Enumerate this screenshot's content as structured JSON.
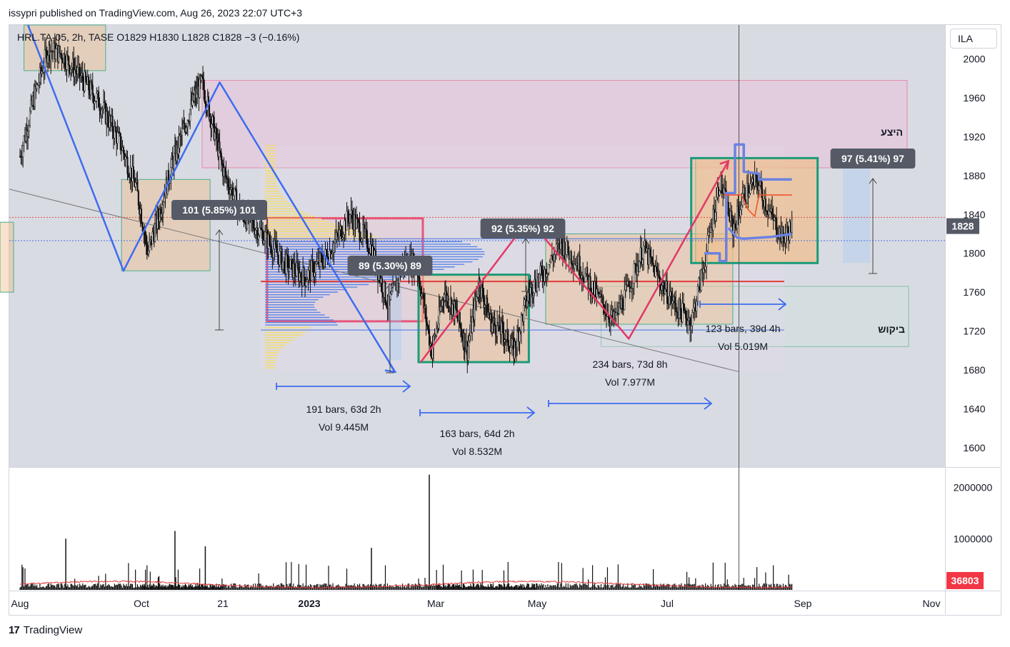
{
  "header": {
    "published": "issypri published on TradingView.com, Aug 26, 2023 22:07 UTC+3",
    "symbol_line": "HRL.TA-05, 2h, TASE  O1829  H1830  L1828  C1828  −3 (−0.16%)",
    "currency": "ILA"
  },
  "footer": {
    "brand": "TradingView"
  },
  "colors": {
    "background": "#ffffff",
    "plot_bg": "#d9dbe3",
    "blue_line": "#3d6cf0",
    "pink_line": "#e23867",
    "green_box": "#1b9b78",
    "volume_ma": "#e23b3b",
    "last_price_label": "#555a66",
    "last_volume_label": "#f23645"
  },
  "chart_data": [
    {
      "type": "line",
      "subtype": "candlestick-price",
      "y_scale": "linear",
      "ylim": [
        1580,
        2035
      ],
      "yticks": [
        1600,
        1640,
        1680,
        1720,
        1760,
        1800,
        1840,
        1880,
        1920,
        1960,
        2000
      ],
      "x_ticks": [
        "Aug",
        "Oct",
        "21",
        "2023",
        "Mar",
        "May",
        "Jul",
        "Sep",
        "Nov"
      ],
      "last_price": 1828,
      "price_path": [
        [
          "2022-08-01",
          1900
        ],
        [
          "2022-08-08",
          1960
        ],
        [
          "2022-08-15",
          2010
        ],
        [
          "2022-08-22",
          2005
        ],
        [
          "2022-09-01",
          1980
        ],
        [
          "2022-09-10",
          1955
        ],
        [
          "2022-09-20",
          1915
        ],
        [
          "2022-09-28",
          1870
        ],
        [
          "2022-10-05",
          1800
        ],
        [
          "2022-10-12",
          1840
        ],
        [
          "2022-10-20",
          1890
        ],
        [
          "2022-10-28",
          1930
        ],
        [
          "2022-11-03",
          1960
        ],
        [
          "2022-11-08",
          1975
        ],
        [
          "2022-11-15",
          1930
        ],
        [
          "2022-11-22",
          1880
        ],
        [
          "2022-11-30",
          1840
        ],
        [
          "2022-12-10",
          1820
        ],
        [
          "2022-12-20",
          1790
        ],
        [
          "2022-12-30",
          1775
        ],
        [
          "2023-01-10",
          1800
        ],
        [
          "2023-01-20",
          1840
        ],
        [
          "2023-01-30",
          1805
        ],
        [
          "2023-02-07",
          1745
        ],
        [
          "2023-02-14",
          1790
        ],
        [
          "2023-02-20",
          1790
        ],
        [
          "2023-02-27",
          1700
        ],
        [
          "2023-03-06",
          1760
        ],
        [
          "2023-03-13",
          1740
        ],
        [
          "2023-03-20",
          1700
        ],
        [
          "2023-03-27",
          1770
        ],
        [
          "2023-04-03",
          1730
        ],
        [
          "2023-04-10",
          1720
        ],
        [
          "2023-04-17",
          1700
        ],
        [
          "2023-04-26",
          1760
        ],
        [
          "2023-05-04",
          1780
        ],
        [
          "2023-05-12",
          1810
        ],
        [
          "2023-05-20",
          1790
        ],
        [
          "2023-05-28",
          1760
        ],
        [
          "2023-06-06",
          1730
        ],
        [
          "2023-06-12",
          1760
        ],
        [
          "2023-06-20",
          1805
        ],
        [
          "2023-06-28",
          1770
        ],
        [
          "2023-07-05",
          1745
        ],
        [
          "2023-07-12",
          1730
        ],
        [
          "2023-07-18",
          1790
        ],
        [
          "2023-07-25",
          1875
        ],
        [
          "2023-07-31",
          1825
        ],
        [
          "2023-08-05",
          1860
        ],
        [
          "2023-08-11",
          1875
        ],
        [
          "2023-08-17",
          1840
        ],
        [
          "2023-08-23",
          1815
        ],
        [
          "2023-08-27",
          1828
        ]
      ],
      "annotations": [
        {
          "label": "101 (5.85%) 101",
          "start_date": "2022-11-19",
          "end_date": "2022-12-26",
          "price": 1800,
          "move": 101
        },
        {
          "label": "89 (5.30%) 89",
          "start_date": "2023-01-20",
          "end_date": "2023-03-27",
          "price": 1790,
          "move": 89
        },
        {
          "label": "92 (5.35%) 92",
          "start_date": "2023-03-27",
          "end_date": "2023-05-24",
          "price": 1832,
          "move": 92
        },
        {
          "label": "97 (5.41%) 97",
          "start_date": "2023-08-28",
          "end_date": "2023-10-01",
          "price": 1865,
          "move": 97
        },
        {
          "label": "191 bars, 63d 2h",
          "sub": "Vol 9.445M"
        },
        {
          "label": "163 bars, 64d 2h",
          "sub": "Vol 8.532M"
        },
        {
          "label": "234 bars, 73d 8h",
          "sub": "Vol 7.977M"
        },
        {
          "label": "123 bars, 39d 4h",
          "sub": "Vol 5.019M"
        },
        {
          "label": "היצע",
          "meaning": "supply zone",
          "ylim": [
            1888,
            1978
          ]
        },
        {
          "label": "ביקוש",
          "meaning": "demand zone",
          "ylim": [
            1704,
            1766
          ]
        }
      ]
    },
    {
      "type": "bar",
      "subtype": "volume",
      "ylim": [
        0,
        2300000
      ],
      "yticks": [
        1000000,
        2000000
      ],
      "ytick_labels": [
        "1000000",
        "2000000"
      ],
      "last_value": 36803,
      "last_value_label": "36803"
    }
  ]
}
